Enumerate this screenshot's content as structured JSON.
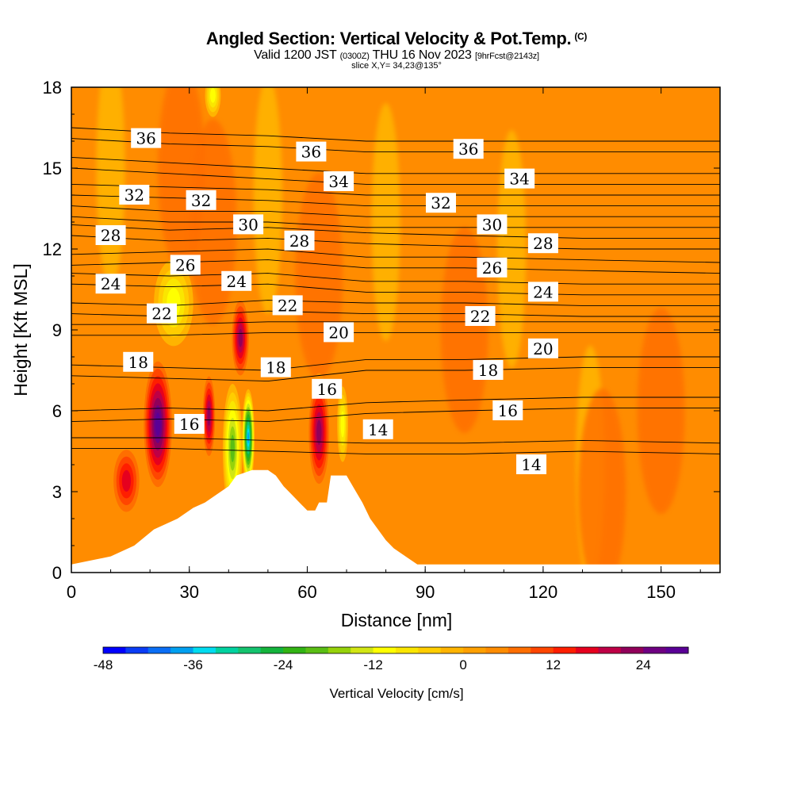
{
  "title_main": "Angled Section: Vertical Velocity & Pot.Temp.",
  "title_unit": "(C)",
  "subtitle_valid": "Valid 1200 JST",
  "subtitle_utc": "(0300Z)",
  "subtitle_date": "THU 16 Nov 2023",
  "subtitle_fcst": "[9hrFcst@2143z]",
  "slice_info": "slice X,Y= 34,23@135°",
  "chart_data": {
    "type": "heatmap",
    "xlabel": "Distance [nm]",
    "ylabel": "Height [Kft MSL]",
    "xlim": [
      0,
      165
    ],
    "ylim": [
      0,
      18
    ],
    "xticks": [
      "0",
      "30",
      "60",
      "90",
      "120",
      "150"
    ],
    "yticks": [
      "0",
      "3",
      "6",
      "9",
      "12",
      "15",
      "18"
    ],
    "colorbar": {
      "label": "Vertical Velocity [cm/s]",
      "tick_labels": [
        "-48",
        "-36",
        "-24",
        "-12",
        "0",
        "12",
        "24"
      ],
      "range": [
        -48,
        30
      ],
      "step": 3,
      "colors": [
        "#0000ff",
        "#0a3cf5",
        "#0a6ef5",
        "#00a0f0",
        "#00dcf0",
        "#00d2a0",
        "#14c36e",
        "#14b43c",
        "#32b414",
        "#5abe14",
        "#96d20a",
        "#d2e614",
        "#ffff00",
        "#fae600",
        "#ffcd00",
        "#ffb400",
        "#ffa000",
        "#ff8c00",
        "#ff6e00",
        "#ff4600",
        "#ff1e00",
        "#e6001e",
        "#be0046",
        "#91005a",
        "#6e0082",
        "#5a0096"
      ]
    },
    "theta_contours": [
      {
        "label": "14",
        "height": [
          4.6,
          4.6,
          4.5,
          4.4,
          4.4,
          4.5,
          4.4
        ]
      },
      {
        "label": "16",
        "height": [
          5.6,
          5.7,
          5.6,
          5.9,
          6.0,
          6.1,
          6.1
        ]
      },
      {
        "label": "18",
        "height": [
          7.3,
          7.2,
          7.1,
          7.5,
          7.5,
          7.6,
          7.6
        ]
      },
      {
        "label": "20",
        "height": [
          8.8,
          8.8,
          8.9,
          8.9,
          8.9,
          8.9,
          8.9
        ]
      },
      {
        "label": "22",
        "height": [
          9.6,
          9.5,
          9.7,
          9.6,
          9.6,
          9.5,
          9.5
        ]
      },
      {
        "label": "24",
        "height": [
          10.7,
          10.6,
          10.7,
          10.4,
          10.4,
          10.3,
          10.3
        ]
      },
      {
        "label": "26",
        "height": [
          11.4,
          11.5,
          11.6,
          11.3,
          11.3,
          11.2,
          11.1
        ]
      },
      {
        "label": "28",
        "height": [
          12.5,
          12.3,
          12.4,
          12.2,
          12.1,
          12.0,
          12.0
        ]
      },
      {
        "label": "30",
        "height": [
          13.2,
          13.0,
          13.0,
          12.8,
          12.8,
          12.8,
          12.8
        ]
      },
      {
        "label": "32",
        "height": [
          14.0,
          13.9,
          13.8,
          13.6,
          13.6,
          13.6,
          13.6
        ]
      },
      {
        "label": "34",
        "height": [
          15.0,
          14.8,
          14.6,
          14.4,
          14.4,
          14.4,
          14.4
        ]
      },
      {
        "label": "36",
        "height": [
          16.1,
          15.9,
          15.8,
          15.6,
          15.6,
          15.6,
          15.6
        ]
      }
    ],
    "theta_x": [
      0,
      25,
      50,
      75,
      100,
      130,
      165
    ],
    "contour_labels": [
      {
        "label": "36",
        "x": 19,
        "y": 16.1
      },
      {
        "label": "36",
        "x": 61,
        "y": 15.6
      },
      {
        "label": "36",
        "x": 101,
        "y": 15.7
      },
      {
        "label": "34",
        "x": 68,
        "y": 14.5
      },
      {
        "label": "34",
        "x": 114,
        "y": 14.6
      },
      {
        "label": "32",
        "x": 16,
        "y": 14.0
      },
      {
        "label": "32",
        "x": 33,
        "y": 13.8
      },
      {
        "label": "32",
        "x": 94,
        "y": 13.7
      },
      {
        "label": "30",
        "x": 45,
        "y": 12.9
      },
      {
        "label": "30",
        "x": 107,
        "y": 12.9
      },
      {
        "label": "28",
        "x": 10,
        "y": 12.5
      },
      {
        "label": "28",
        "x": 58,
        "y": 12.3
      },
      {
        "label": "28",
        "x": 120,
        "y": 12.2
      },
      {
        "label": "26",
        "x": 29,
        "y": 11.4
      },
      {
        "label": "26",
        "x": 107,
        "y": 11.3
      },
      {
        "label": "24",
        "x": 10,
        "y": 10.7
      },
      {
        "label": "24",
        "x": 42,
        "y": 10.8
      },
      {
        "label": "24",
        "x": 120,
        "y": 10.4
      },
      {
        "label": "22",
        "x": 23,
        "y": 9.6
      },
      {
        "label": "22",
        "x": 55,
        "y": 9.9
      },
      {
        "label": "22",
        "x": 104,
        "y": 9.5
      },
      {
        "label": "20",
        "x": 68,
        "y": 8.9
      },
      {
        "label": "20",
        "x": 120,
        "y": 8.3
      },
      {
        "label": "18",
        "x": 17,
        "y": 7.8
      },
      {
        "label": "18",
        "x": 52,
        "y": 7.6
      },
      {
        "label": "18",
        "x": 106,
        "y": 7.5
      },
      {
        "label": "16",
        "x": 30,
        "y": 5.5
      },
      {
        "label": "16",
        "x": 65,
        "y": 6.8
      },
      {
        "label": "16",
        "x": 111,
        "y": 6.0
      },
      {
        "label": "14",
        "x": 78,
        "y": 5.3
      },
      {
        "label": "14",
        "x": 117,
        "y": 4.0
      }
    ],
    "terrain": [
      [
        0,
        0.3
      ],
      [
        10,
        0.6
      ],
      [
        16,
        1.0
      ],
      [
        21,
        1.6
      ],
      [
        27,
        2.0
      ],
      [
        31,
        2.4
      ],
      [
        34,
        2.6
      ],
      [
        38,
        3.0
      ],
      [
        40,
        3.2
      ],
      [
        42,
        3.6
      ],
      [
        46,
        3.8
      ],
      [
        50,
        3.8
      ],
      [
        52,
        3.6
      ],
      [
        54,
        3.2
      ],
      [
        56,
        2.9
      ],
      [
        58,
        2.6
      ],
      [
        60,
        2.3
      ],
      [
        62,
        2.3
      ],
      [
        63,
        2.6
      ],
      [
        65,
        2.6
      ],
      [
        66,
        3.6
      ],
      [
        70,
        3.6
      ],
      [
        72,
        3.1
      ],
      [
        74,
        2.6
      ],
      [
        76,
        2.0
      ],
      [
        78,
        1.6
      ],
      [
        80,
        1.2
      ],
      [
        82,
        0.9
      ],
      [
        85,
        0.6
      ],
      [
        88,
        0.3
      ],
      [
        165,
        0.3
      ]
    ],
    "updrafts": [
      {
        "x": 22,
        "y": 5.5,
        "rx": 4,
        "ry": 2.6,
        "value": 27
      },
      {
        "x": 35,
        "y": 5.8,
        "rx": 1.8,
        "ry": 1.7,
        "value": 21
      },
      {
        "x": 43,
        "y": 8.7,
        "rx": 2.5,
        "ry": 1.6,
        "value": 21
      },
      {
        "x": 63,
        "y": 5.2,
        "rx": 3,
        "ry": 2.2,
        "value": 21
      },
      {
        "x": 14,
        "y": 3.4,
        "rx": 4,
        "ry": 1.4,
        "value": 15
      }
    ],
    "downdrafts": [
      {
        "x": 45,
        "y": 5.0,
        "rx": 1.6,
        "ry": 1.8,
        "value": -39
      },
      {
        "x": 41,
        "y": 4.6,
        "rx": 2.5,
        "ry": 2.4,
        "value": -21
      },
      {
        "x": 26,
        "y": 10.0,
        "rx": 5,
        "ry": 1.6,
        "value": -12
      },
      {
        "x": 36,
        "y": 17.7,
        "rx": 2,
        "ry": 0.8,
        "value": -12
      },
      {
        "x": 69,
        "y": 5.5,
        "rx": 1.4,
        "ry": 1.4,
        "value": -12
      }
    ]
  }
}
